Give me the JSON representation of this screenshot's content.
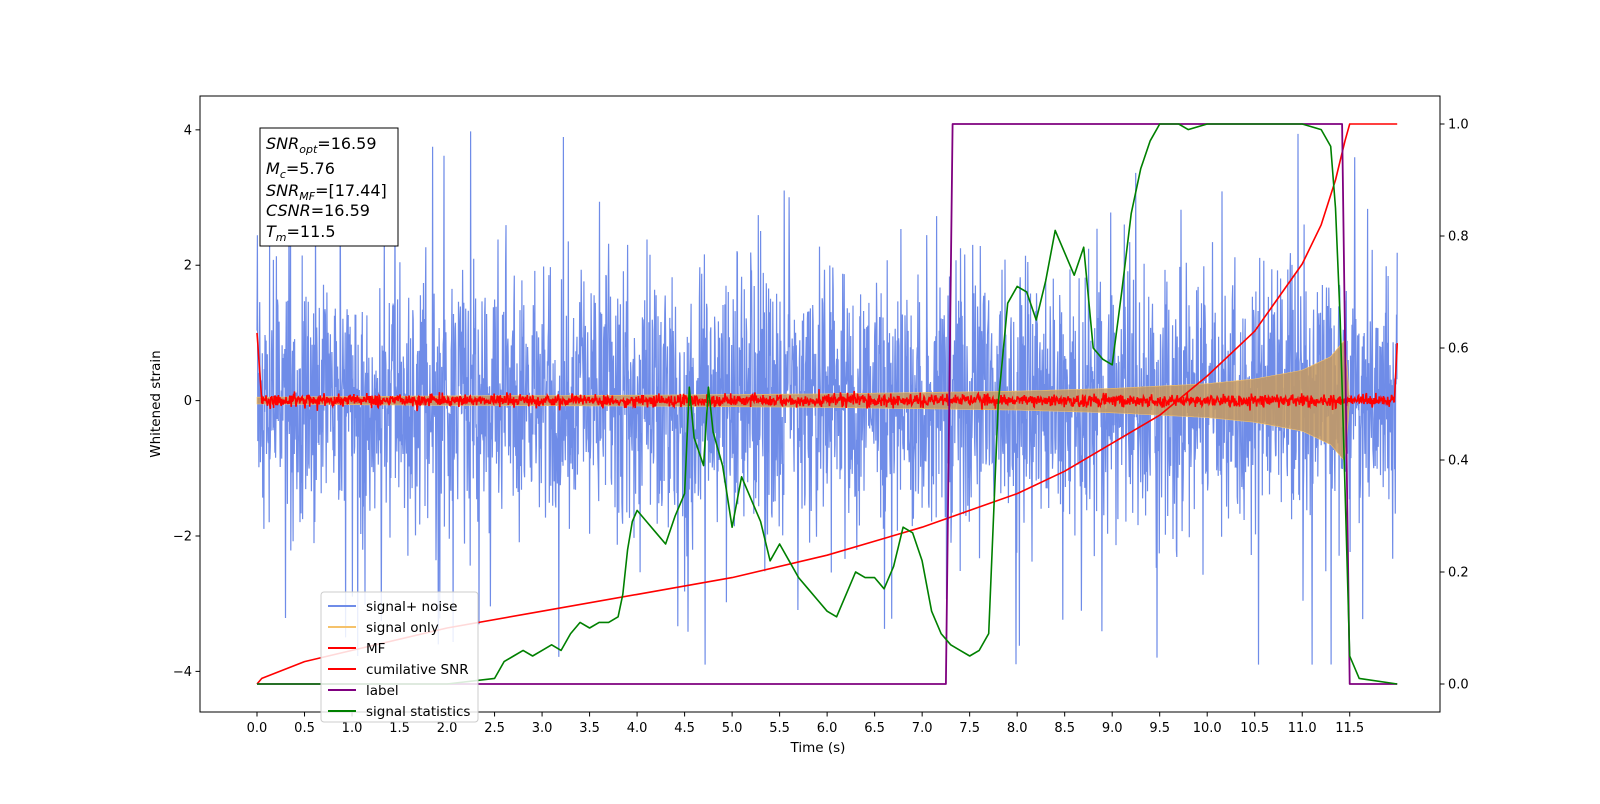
{
  "chart_data": {
    "type": "line",
    "title": "",
    "xlabel": "Time (s)",
    "ylabel": "Whitened strain",
    "y2label": "",
    "xlim": [
      -0.6,
      12.45
    ],
    "ylim": [
      -4.6,
      4.5
    ],
    "y2lim": [
      -0.05,
      1.05
    ],
    "x_ticks": [
      0.0,
      0.5,
      1.0,
      1.5,
      2.0,
      2.5,
      3.0,
      3.5,
      4.0,
      4.5,
      5.0,
      5.5,
      6.0,
      6.5,
      7.0,
      7.5,
      8.0,
      8.5,
      9.0,
      9.5,
      10.0,
      10.5,
      11.0,
      11.5
    ],
    "x_tick_labels": [
      "0.0",
      "0.5",
      "1.0",
      "1.5",
      "2.0",
      "2.5",
      "3.0",
      "3.5",
      "4.0",
      "4.5",
      "5.0",
      "5.5",
      "6.0",
      "6.5",
      "7.0",
      "7.5",
      "8.0",
      "8.5",
      "9.0",
      "9.5",
      "10.0",
      "10.5",
      "11.0",
      "11.5"
    ],
    "y_ticks": [
      -4,
      -2,
      0,
      2,
      4
    ],
    "y_tick_labels": [
      "−4",
      "−2",
      "0",
      "2",
      "4"
    ],
    "y2_ticks": [
      0.0,
      0.2,
      0.4,
      0.6,
      0.8,
      1.0
    ],
    "y2_tick_labels": [
      "0.0",
      "0.2",
      "0.4",
      "0.6",
      "0.8",
      "1.0"
    ],
    "grid": false,
    "legend_position": "lower-left",
    "series": [
      {
        "name": "signal+ noise",
        "axis": "left",
        "color": "#6f8ce8",
        "description": "noisy whitened strain spanning 0 to 12 s, amplitude roughly -2.5 to 2.5 with spikes up to 4"
      },
      {
        "name": "signal only",
        "axis": "left",
        "color": "#f5c26b",
        "envelope_x": [
          0.0,
          2.0,
          4.0,
          6.0,
          8.0,
          9.0,
          10.0,
          10.5,
          11.0,
          11.3,
          11.45,
          11.5
        ],
        "envelope_y": [
          0.05,
          0.07,
          0.08,
          0.1,
          0.14,
          0.18,
          0.25,
          0.32,
          0.45,
          0.65,
          0.9,
          0.0
        ]
      },
      {
        "name": "MF",
        "axis": "left",
        "color": "#ff0000",
        "description": "noise around 0, approximately -0.15 to 0.15, spike to 1.0 at t=0"
      },
      {
        "name": "cumilative SNR",
        "axis": "right",
        "color": "#ff0000",
        "x": [
          0.0,
          0.05,
          0.5,
          1.0,
          2.0,
          3.0,
          4.0,
          5.0,
          6.0,
          7.0,
          8.0,
          8.5,
          9.0,
          9.5,
          10.0,
          10.5,
          11.0,
          11.2,
          11.35,
          11.45,
          11.5,
          12.0
        ],
        "y": [
          0.0,
          0.01,
          0.04,
          0.06,
          0.1,
          0.13,
          0.16,
          0.19,
          0.23,
          0.28,
          0.34,
          0.38,
          0.43,
          0.48,
          0.55,
          0.63,
          0.75,
          0.82,
          0.9,
          0.97,
          1.0,
          1.0
        ]
      },
      {
        "name": "label",
        "axis": "right",
        "color": "#7f007f",
        "x": [
          0.0,
          7.25,
          7.32,
          11.42,
          11.5,
          12.0
        ],
        "y": [
          0.0,
          0.0,
          1.0,
          1.0,
          0.0,
          0.0
        ]
      },
      {
        "name": "signal statistics",
        "axis": "right",
        "color": "#008000",
        "x": [
          0.0,
          0.5,
          1.0,
          1.5,
          2.0,
          2.5,
          2.6,
          2.7,
          2.8,
          2.9,
          3.0,
          3.1,
          3.2,
          3.3,
          3.4,
          3.5,
          3.6,
          3.7,
          3.8,
          3.85,
          3.9,
          3.95,
          4.0,
          4.1,
          4.2,
          4.3,
          4.4,
          4.5,
          4.55,
          4.6,
          4.7,
          4.75,
          4.8,
          4.9,
          5.0,
          5.1,
          5.2,
          5.3,
          5.4,
          5.5,
          5.6,
          5.7,
          5.8,
          5.9,
          6.0,
          6.1,
          6.2,
          6.3,
          6.4,
          6.5,
          6.6,
          6.7,
          6.8,
          6.9,
          7.0,
          7.1,
          7.2,
          7.3,
          7.4,
          7.5,
          7.6,
          7.7,
          7.8,
          7.9,
          8.0,
          8.1,
          8.2,
          8.3,
          8.4,
          8.5,
          8.6,
          8.7,
          8.8,
          8.9,
          9.0,
          9.1,
          9.2,
          9.3,
          9.4,
          9.5,
          9.6,
          9.7,
          9.8,
          10.0,
          10.5,
          11.0,
          11.2,
          11.3,
          11.35,
          11.4,
          11.45,
          11.5,
          11.6,
          12.0
        ],
        "y": [
          0.0,
          0.0,
          0.0,
          0.0,
          0.0,
          0.01,
          0.04,
          0.05,
          0.06,
          0.05,
          0.06,
          0.07,
          0.06,
          0.09,
          0.11,
          0.1,
          0.11,
          0.11,
          0.12,
          0.16,
          0.24,
          0.29,
          0.31,
          0.29,
          0.27,
          0.25,
          0.3,
          0.34,
          0.53,
          0.44,
          0.39,
          0.53,
          0.45,
          0.39,
          0.28,
          0.37,
          0.33,
          0.29,
          0.22,
          0.25,
          0.22,
          0.19,
          0.17,
          0.15,
          0.13,
          0.12,
          0.16,
          0.2,
          0.19,
          0.19,
          0.17,
          0.21,
          0.28,
          0.27,
          0.22,
          0.13,
          0.09,
          0.07,
          0.06,
          0.05,
          0.06,
          0.09,
          0.5,
          0.68,
          0.71,
          0.7,
          0.65,
          0.72,
          0.81,
          0.77,
          0.73,
          0.78,
          0.6,
          0.58,
          0.57,
          0.7,
          0.84,
          0.92,
          0.97,
          1.0,
          1.0,
          1.0,
          0.99,
          1.0,
          1.0,
          1.0,
          0.99,
          0.96,
          0.85,
          0.65,
          0.35,
          0.05,
          0.01,
          0.0
        ]
      }
    ],
    "annotation_lines": [
      "SNR_opt=16.59",
      "M_c=5.76",
      "SNR_MF=[17.44]",
      "CSNR=16.59",
      "T_m=11.5"
    ]
  },
  "info_box": {
    "snr_opt": {
      "name": "SNR",
      "sub": "opt",
      "value": "=16.59"
    },
    "mc": {
      "name": "M",
      "sub": "c",
      "value": "=5.76"
    },
    "snr_mf": {
      "name": "SNR",
      "sub": "MF",
      "value": "=[17.44]"
    },
    "csnr": {
      "name": "CSNR",
      "value": "=16.59"
    },
    "tm": {
      "name": "T",
      "sub": "m",
      "value": "=11.5"
    }
  },
  "legend": {
    "items": [
      {
        "label": "signal+ noise",
        "color": "#6f8ce8"
      },
      {
        "label": "signal only",
        "color": "#f5c26b"
      },
      {
        "label": "MF",
        "color": "#ff0000"
      },
      {
        "label": "cumilative SNR",
        "color": "#ff0000"
      },
      {
        "label": "label",
        "color": "#7f007f"
      },
      {
        "label": "signal statistics",
        "color": "#008000"
      }
    ]
  }
}
